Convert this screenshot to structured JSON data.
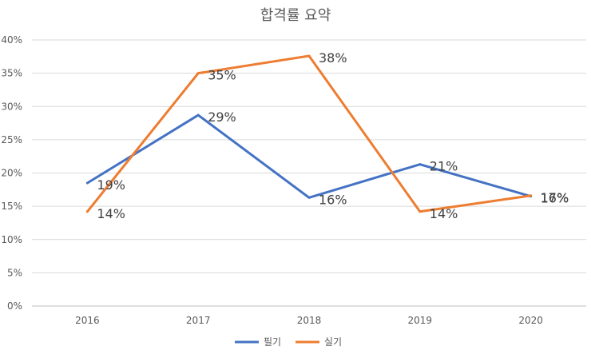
{
  "chart_data": {
    "type": "line",
    "title": "합격률 요약",
    "categories": [
      "2016",
      "2017",
      "2018",
      "2019",
      "2020"
    ],
    "ylim": [
      0,
      40
    ],
    "yticks": [
      "0%",
      "5%",
      "10%",
      "15%",
      "20%",
      "25%",
      "30%",
      "35%",
      "40%"
    ],
    "grid": true,
    "legend_position": "bottom",
    "series": [
      {
        "name": "필기",
        "color": "#4472C4",
        "values": [
          18.5,
          28.7,
          16.3,
          21.3,
          16.5
        ],
        "labels": [
          "19%",
          "29%",
          "16%",
          "21%",
          "16%"
        ]
      },
      {
        "name": "실기",
        "color": "#ED7D31",
        "values": [
          14.2,
          35.0,
          37.6,
          14.2,
          16.6
        ],
        "labels": [
          "14%",
          "35%",
          "38%",
          "14%",
          "17%"
        ]
      }
    ]
  }
}
